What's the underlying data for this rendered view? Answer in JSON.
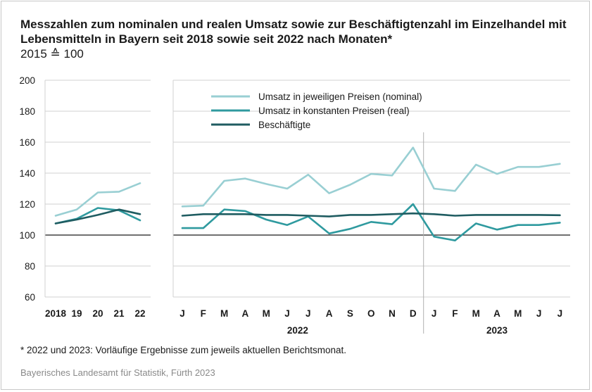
{
  "header": {
    "title": "Messzahlen zum nominalen und realen Umsatz sowie zur Beschäftigtenzahl im Einzelhandel mit Lebensmitteln in Bayern seit 2018 sowie seit 2022 nach Monaten*",
    "subtitle": "2015 ≙ 100"
  },
  "footer": {
    "footnote": "* 2022 und 2023: Vorläufige Ergebnisse zum jeweils aktuellen Berichtsmonat.",
    "source": "Bayerisches Landesamt für Statistik, Fürth 2023"
  },
  "colors": {
    "nominal": "#99cfd3",
    "real": "#2f9a9f",
    "employees": "#1f5c61",
    "grid": "#d0d0d0",
    "baseline": "#1a1a1a"
  },
  "chart_data": {
    "type": "line",
    "ylim": [
      60,
      200
    ],
    "yticks": [
      60,
      80,
      100,
      120,
      140,
      160,
      180,
      200
    ],
    "grid": true,
    "legend": "top-center",
    "annual": {
      "categories": [
        "2018",
        "19",
        "20",
        "21",
        "22"
      ],
      "series": [
        {
          "name": "Umsatz in jeweiligen Preisen (nominal)",
          "values": [
            112.5,
            116.5,
            127.5,
            128.0,
            133.5
          ]
        },
        {
          "name": "Umsatz in konstanten Preisen (real)",
          "values": [
            107.5,
            110.5,
            117.5,
            116.0,
            109.5
          ]
        },
        {
          "name": "Beschäftigte",
          "values": [
            107.5,
            110.0,
            113.0,
            116.5,
            113.5
          ]
        }
      ]
    },
    "monthly": {
      "categories": [
        "J",
        "F",
        "M",
        "A",
        "M",
        "J",
        "J",
        "A",
        "S",
        "O",
        "N",
        "D",
        "J",
        "F",
        "M",
        "A",
        "M",
        "J",
        "J"
      ],
      "years": [
        {
          "label": "2022",
          "months": 12
        },
        {
          "label": "2023",
          "months": 7
        }
      ],
      "series": [
        {
          "name": "Umsatz in jeweiligen Preisen (nominal)",
          "values": [
            118.5,
            119.0,
            135.0,
            136.5,
            133.0,
            130.0,
            139.0,
            127.0,
            132.5,
            139.5,
            138.5,
            156.5,
            130.0,
            128.5,
            145.5,
            139.5,
            144.0,
            144.0,
            146.0
          ]
        },
        {
          "name": "Umsatz in konstanten Preisen (real)",
          "values": [
            104.5,
            104.5,
            116.5,
            115.5,
            110.0,
            106.5,
            112.0,
            101.0,
            104.0,
            108.5,
            107.0,
            120.0,
            99.0,
            96.5,
            107.5,
            103.5,
            106.5,
            106.5,
            108.0
          ]
        },
        {
          "name": "Beschäftigte",
          "values": [
            112.5,
            113.5,
            113.5,
            113.5,
            113.0,
            113.0,
            112.5,
            112.0,
            113.0,
            113.0,
            113.5,
            114.0,
            113.5,
            112.5,
            113.0,
            113.0,
            113.0,
            113.0,
            112.8
          ]
        }
      ]
    }
  }
}
